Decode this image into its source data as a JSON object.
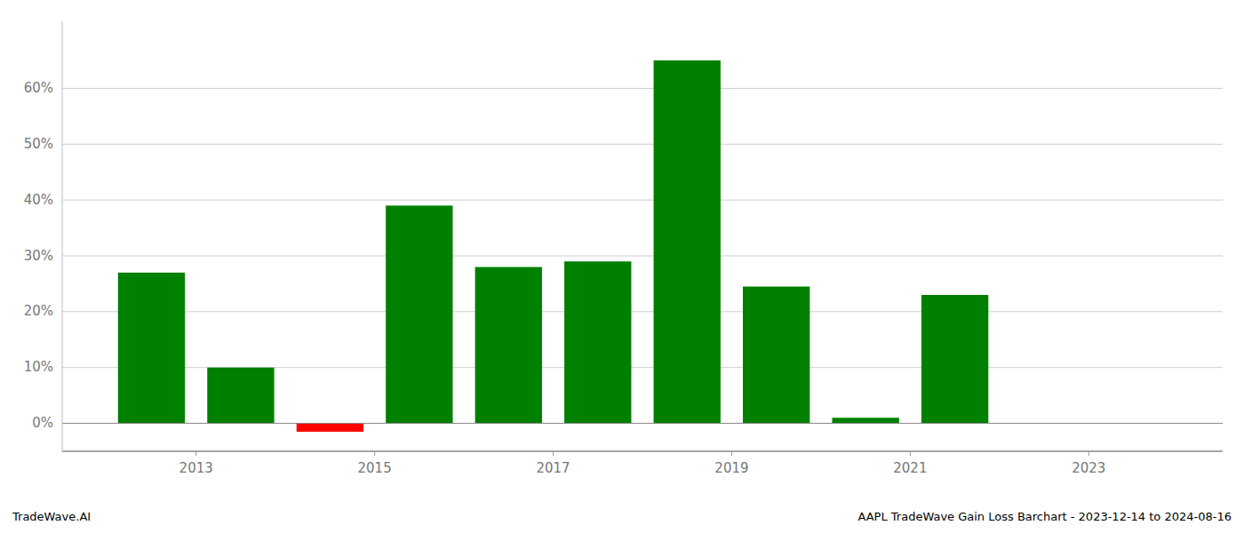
{
  "chart_data": {
    "type": "bar",
    "x": [
      2012.5,
      2013.5,
      2014.5,
      2015.5,
      2016.5,
      2017.5,
      2018.5,
      2019.5,
      2020.5,
      2021.5
    ],
    "values": [
      0.27,
      0.1,
      -0.015,
      0.39,
      0.28,
      0.29,
      0.65,
      0.245,
      0.01,
      0.23
    ],
    "colors": [
      "#008000",
      "#008000",
      "#ff0000",
      "#008000",
      "#008000",
      "#008000",
      "#008000",
      "#008000",
      "#008000",
      "#008000"
    ],
    "xlim": [
      2011.5,
      2024.5
    ],
    "ylim": [
      -0.05,
      0.72
    ],
    "xticks": [
      2013,
      2015,
      2017,
      2019,
      2021,
      2023
    ],
    "yticks": [
      {
        "value": 0.0,
        "label": "0%"
      },
      {
        "value": 0.1,
        "label": "10%"
      },
      {
        "value": 0.2,
        "label": "20%"
      },
      {
        "value": 0.3,
        "label": "30%"
      },
      {
        "value": 0.4,
        "label": "40%"
      },
      {
        "value": 0.5,
        "label": "50%"
      },
      {
        "value": 0.6,
        "label": "60%"
      }
    ],
    "grid": true,
    "annotations": [
      "TradeWave.AI",
      "AAPL TradeWave Gain Loss Barchart - 2023-12-14 to 2024-08-16"
    ]
  }
}
